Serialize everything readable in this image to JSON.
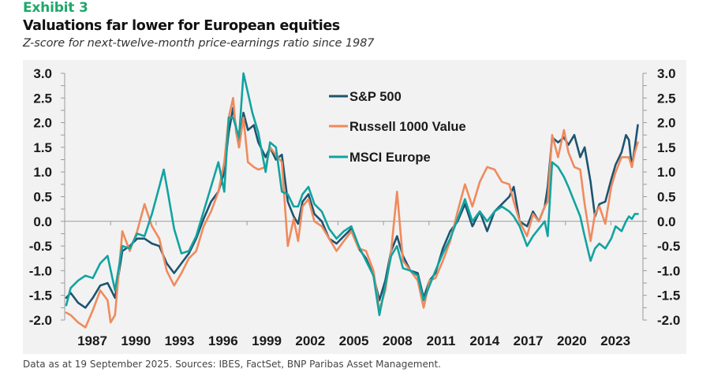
{
  "header": {
    "exhibit": "Exhibit 3",
    "title": "Valuations far lower for European equities",
    "subtitle": "Z-score for next-twelve-month price-earnings ratio since 1987"
  },
  "footer": "Data as at 19 September 2025.  Sources: IBES, FactSet, BNP Paribas Asset Management.",
  "chart_data": {
    "type": "line",
    "title": "Valuations far lower for European equities",
    "subtitle": "Z-score for next-twelve-month price-earnings ratio since 1987",
    "xlabel": "",
    "ylabel": "",
    "xlim": [
      1987,
      2025.75
    ],
    "ylim": [
      -2.0,
      3.0
    ],
    "x_ticks": [
      "1987",
      "1990",
      "1993",
      "1996",
      "1999",
      "2002",
      "2005",
      "2008",
      "2011",
      "2014",
      "2017",
      "2020",
      "2023"
    ],
    "y_ticks": [
      "3.0",
      "2.5",
      "2.0",
      "1.5",
      "1.0",
      "0.5",
      "0.0",
      "-0.5",
      "-1.0",
      "-1.5",
      "-2.0"
    ],
    "y_axes": [
      "left",
      "right"
    ],
    "grid": false,
    "legend_position": "top-center",
    "series": [
      {
        "name": "S&P 500",
        "color": "#1d5470",
        "x": [
          1987.0,
          1987.3,
          1987.8,
          1988.3,
          1988.8,
          1989.3,
          1989.8,
          1990.3,
          1990.8,
          1991.3,
          1991.8,
          1992.3,
          1992.8,
          1993.3,
          1993.8,
          1994.3,
          1994.8,
          1995.3,
          1995.8,
          1996.3,
          1996.8,
          1997.3,
          1997.7,
          1998.0,
          1998.3,
          1998.7,
          1999.0,
          1999.3,
          1999.7,
          2000.0,
          2000.5,
          2000.8,
          2001.2,
          2001.6,
          2002.0,
          2002.4,
          2002.7,
          2003.0,
          2003.4,
          2003.8,
          2004.3,
          2004.8,
          2005.3,
          2005.8,
          2006.3,
          2006.8,
          2007.3,
          2007.8,
          2008.2,
          2008.6,
          2009.0,
          2009.4,
          2009.8,
          2010.3,
          2010.8,
          2011.2,
          2011.6,
          2012.0,
          2012.5,
          2013.0,
          2013.5,
          2014.0,
          2014.5,
          2015.0,
          2015.5,
          2016.0,
          2016.5,
          2017.0,
          2017.3,
          2017.7,
          2018.2,
          2018.6,
          2019.0,
          2019.4,
          2019.6,
          2019.9,
          2020.3,
          2020.7,
          2021.0,
          2021.4,
          2021.8,
          2022.1,
          2022.5,
          2022.8,
          2023.1,
          2023.5,
          2023.9,
          2024.2,
          2024.6,
          2024.9,
          2025.1,
          2025.3,
          2025.5,
          2025.7
        ],
        "values": [
          -1.55,
          -1.45,
          -1.65,
          -1.75,
          -1.55,
          -1.3,
          -1.25,
          -1.55,
          -0.6,
          -0.5,
          -0.35,
          -0.35,
          -0.45,
          -0.5,
          -0.85,
          -1.05,
          -0.85,
          -0.65,
          -0.35,
          0.05,
          0.4,
          0.6,
          1.0,
          1.8,
          2.3,
          1.5,
          2.2,
          1.85,
          1.95,
          1.6,
          1.3,
          1.5,
          1.25,
          1.35,
          0.4,
          0.1,
          -0.05,
          0.4,
          0.55,
          0.15,
          0.0,
          -0.35,
          -0.45,
          -0.3,
          -0.15,
          -0.55,
          -0.75,
          -1.1,
          -1.6,
          -1.2,
          -0.6,
          -0.3,
          -0.7,
          -1.0,
          -1.05,
          -1.55,
          -1.2,
          -1.05,
          -0.55,
          -0.2,
          0.0,
          0.35,
          -0.1,
          0.2,
          -0.2,
          0.2,
          0.35,
          0.5,
          0.7,
          0.0,
          -0.1,
          0.2,
          0.0,
          0.3,
          0.7,
          1.7,
          1.6,
          1.7,
          1.55,
          1.75,
          1.3,
          1.5,
          0.8,
          0.1,
          0.35,
          0.4,
          0.85,
          1.15,
          1.4,
          1.75,
          1.65,
          1.1,
          1.5,
          1.95
        ]
      },
      {
        "name": "Russell 1000 Value",
        "color": "#f08a5d",
        "x": [
          1987.0,
          1987.3,
          1987.8,
          1988.3,
          1988.8,
          1989.3,
          1989.8,
          1990.0,
          1990.3,
          1990.8,
          1991.3,
          1991.8,
          1992.3,
          1992.8,
          1993.3,
          1993.8,
          1994.3,
          1994.8,
          1995.3,
          1995.8,
          1996.3,
          1996.8,
          1997.3,
          1997.7,
          1998.0,
          1998.3,
          1998.5,
          1998.7,
          1999.0,
          1999.3,
          1999.7,
          2000.0,
          2000.5,
          2000.8,
          2001.2,
          2001.6,
          2002.0,
          2002.4,
          2002.7,
          2003.0,
          2003.4,
          2003.8,
          2004.3,
          2004.8,
          2005.3,
          2005.8,
          2006.3,
          2006.8,
          2007.3,
          2007.8,
          2008.2,
          2008.6,
          2009.0,
          2009.4,
          2009.8,
          2010.3,
          2010.8,
          2011.2,
          2011.6,
          2012.0,
          2012.5,
          2013.0,
          2013.5,
          2014.0,
          2014.5,
          2015.0,
          2015.5,
          2016.0,
          2016.5,
          2017.0,
          2017.3,
          2017.7,
          2018.2,
          2018.6,
          2019.0,
          2019.4,
          2019.6,
          2019.9,
          2020.3,
          2020.7,
          2021.0,
          2021.4,
          2021.8,
          2022.1,
          2022.5,
          2022.8,
          2023.1,
          2023.5,
          2023.9,
          2024.2,
          2024.6,
          2024.9,
          2025.1,
          2025.3,
          2025.5,
          2025.7
        ],
        "values": [
          -1.85,
          -1.9,
          -2.05,
          -2.15,
          -1.8,
          -1.4,
          -1.6,
          -2.05,
          -1.9,
          -0.2,
          -0.6,
          -0.2,
          0.35,
          -0.1,
          -0.35,
          -1.0,
          -1.3,
          -1.05,
          -0.75,
          -0.6,
          -0.1,
          0.2,
          0.6,
          1.2,
          2.1,
          2.5,
          1.8,
          1.5,
          2.1,
          1.2,
          1.1,
          1.05,
          1.1,
          1.5,
          1.35,
          1.2,
          -0.5,
          0.05,
          -0.4,
          0.3,
          0.45,
          0.0,
          -0.1,
          -0.35,
          -0.6,
          -0.4,
          -0.2,
          -0.55,
          -0.6,
          -1.0,
          -1.8,
          -1.4,
          -0.6,
          0.6,
          -0.8,
          -1.0,
          -1.2,
          -1.75,
          -1.2,
          -1.15,
          -0.8,
          -0.4,
          0.2,
          0.75,
          0.3,
          0.8,
          1.1,
          1.05,
          0.8,
          0.75,
          0.4,
          0.0,
          -0.3,
          0.15,
          0.0,
          0.3,
          0.4,
          1.75,
          1.3,
          1.85,
          1.4,
          1.1,
          1.05,
          0.35,
          -0.4,
          0.15,
          0.3,
          -0.05,
          0.7,
          1.0,
          1.3,
          1.3,
          1.3,
          1.1,
          1.4,
          1.6
        ]
      },
      {
        "name": "MSCI Europe",
        "color": "#12a3a0",
        "x": [
          1987.0,
          1987.3,
          1987.8,
          1988.3,
          1988.8,
          1989.3,
          1989.8,
          1990.3,
          1990.8,
          1991.3,
          1991.8,
          1992.3,
          1992.8,
          1993.3,
          1993.6,
          1993.9,
          1994.3,
          1994.8,
          1995.3,
          1995.8,
          1996.3,
          1996.8,
          1997.3,
          1997.7,
          1998.0,
          1998.3,
          1998.7,
          1999.0,
          1999.3,
          1999.6,
          2000.0,
          2000.5,
          2000.8,
          2001.2,
          2001.6,
          2002.0,
          2002.4,
          2002.7,
          2003.0,
          2003.4,
          2003.8,
          2004.3,
          2004.8,
          2005.3,
          2005.8,
          2006.3,
          2006.8,
          2007.3,
          2007.8,
          2008.2,
          2008.6,
          2009.0,
          2009.4,
          2009.8,
          2010.3,
          2010.8,
          2011.2,
          2011.6,
          2012.0,
          2012.5,
          2013.0,
          2013.5,
          2014.0,
          2014.5,
          2015.0,
          2015.5,
          2016.0,
          2016.5,
          2017.0,
          2017.3,
          2017.7,
          2018.2,
          2018.6,
          2019.0,
          2019.4,
          2019.6,
          2019.9,
          2020.3,
          2020.7,
          2021.0,
          2021.4,
          2021.8,
          2022.1,
          2022.5,
          2022.8,
          2023.1,
          2023.5,
          2023.9,
          2024.2,
          2024.6,
          2024.9,
          2025.1,
          2025.3,
          2025.5,
          2025.7
        ],
        "values": [
          -1.7,
          -1.35,
          -1.2,
          -1.1,
          -1.15,
          -0.85,
          -0.7,
          -1.4,
          -0.5,
          -0.55,
          -0.25,
          -0.3,
          0.15,
          0.7,
          1.05,
          0.55,
          -0.15,
          -0.65,
          -0.6,
          -0.3,
          0.2,
          0.7,
          1.2,
          0.6,
          2.1,
          2.1,
          1.7,
          3.0,
          2.6,
          2.2,
          1.8,
          1.0,
          1.6,
          1.5,
          0.6,
          0.55,
          0.3,
          0.3,
          0.55,
          0.7,
          0.35,
          0.2,
          -0.15,
          -0.35,
          -0.2,
          -0.1,
          -0.5,
          -0.8,
          -1.1,
          -1.9,
          -1.3,
          -0.7,
          -0.5,
          -0.95,
          -1.0,
          -1.1,
          -1.6,
          -1.3,
          -1.0,
          -0.65,
          -0.35,
          0.05,
          0.45,
          0.0,
          0.2,
          0.0,
          0.2,
          0.3,
          0.2,
          0.1,
          -0.1,
          -0.5,
          -0.3,
          -0.15,
          0.0,
          -0.3,
          1.2,
          1.1,
          0.9,
          0.7,
          0.4,
          0.1,
          -0.3,
          -0.8,
          -0.55,
          -0.45,
          -0.55,
          -0.35,
          -0.1,
          -0.2,
          0.0,
          0.1,
          0.05,
          0.15,
          0.15
        ]
      }
    ]
  }
}
